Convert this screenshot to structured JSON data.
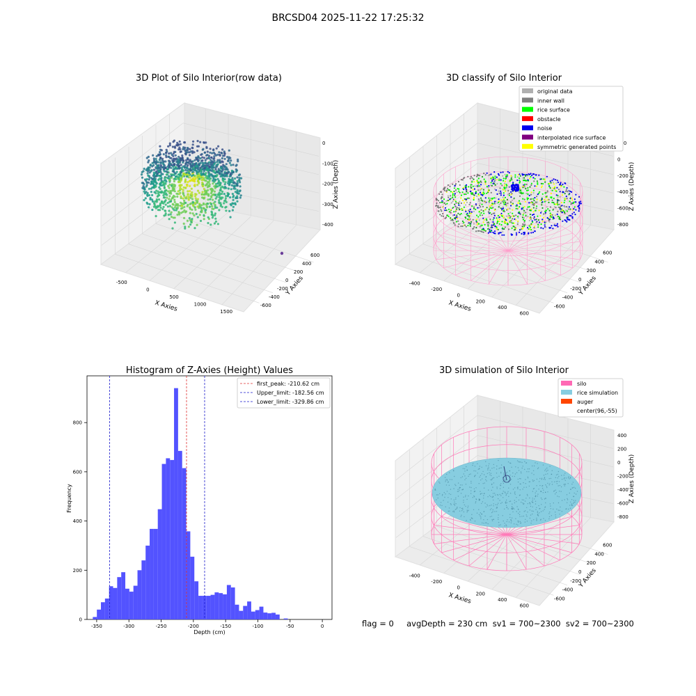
{
  "figure": {
    "suptitle": "BRCSD04 2025-11-22 17:25:32",
    "footer": "flag = 0     avgDepth = 230 cm  sv1 = 700~2300  sv2 = 700~2300"
  },
  "colors": {
    "histogram_bar": "#4d4dff",
    "first_peak_line": "#e03030",
    "limit_line": "#1a1acc",
    "silo_wire": "#ff7ab8",
    "rice_simulation": "#87cde0",
    "rice_surface": "#00ff00",
    "noise": "#0000ee",
    "symmetric_points": "#ffff00"
  },
  "chart_data": [
    {
      "type": "scatter",
      "panel": "3d-raw",
      "title": "3D Plot of Silo Interior(row data)",
      "xlabel": "X Axies",
      "ylabel": "Y Axies",
      "zlabel": "Z Axies (Depth)",
      "x_ticks": [
        "-500",
        "0",
        "500",
        "1000",
        "1500"
      ],
      "y_ticks": [
        "600",
        "400",
        "200",
        "0",
        "-200",
        "-400",
        "-600"
      ],
      "z_ticks": [
        "0",
        "-100",
        "-200",
        "-300",
        "-400"
      ],
      "colormap": "viridis"
    },
    {
      "type": "scatter",
      "panel": "3d-classify",
      "title": "3D classify of Silo Interior",
      "xlabel": "X Axies",
      "ylabel": "Y Axies",
      "zlabel": "Z Axies (Depth)",
      "x_ticks": [
        "-400",
        "-200",
        "0",
        "200",
        "400",
        "600"
      ],
      "y_ticks": [
        "600",
        "400",
        "200",
        "0",
        "-200",
        "-400",
        "-600"
      ],
      "z_ticks": [
        "200",
        "0",
        "-200",
        "-400",
        "-600",
        "-800"
      ],
      "legend_position": "top-right",
      "legend": [
        {
          "label": "original data",
          "color": "#b0b0b0"
        },
        {
          "label": "inner wall",
          "color": "#808080"
        },
        {
          "label": "rice surface",
          "color": "#00ff00"
        },
        {
          "label": "obstacle",
          "color": "#ff0000"
        },
        {
          "label": "noise",
          "color": "#0000ee"
        },
        {
          "label": "interpolated rice surface",
          "color": "#800080"
        },
        {
          "label": "symmetric generated points",
          "color": "#ffff00"
        }
      ]
    },
    {
      "type": "bar",
      "panel": "histogram",
      "title": "Histogram of Z-Axies (Height) Values",
      "xlabel": "Depth (cm)",
      "ylabel": "Frequency",
      "xlim": [
        -365,
        15
      ],
      "ylim": [
        0,
        990
      ],
      "x_ticks": [
        -350,
        -300,
        -250,
        -200,
        -150,
        -100,
        -50,
        0
      ],
      "y_ticks": [
        0,
        200,
        400,
        600,
        800
      ],
      "bin_start": -356,
      "bin_width": 6.3,
      "values": [
        10,
        40,
        70,
        85,
        135,
        128,
        172,
        192,
        125,
        113,
        137,
        200,
        240,
        300,
        368,
        368,
        448,
        632,
        655,
        648,
        940,
        685,
        615,
        358,
        255,
        155,
        96,
        96,
        96,
        100,
        110,
        107,
        102,
        140,
        130,
        60,
        35,
        55,
        73,
        32,
        38,
        52,
        28,
        25,
        27,
        20,
        0,
        4
      ],
      "vlines": [
        {
          "label": "first_peak: -210.62 cm",
          "x": -210.62,
          "color": "#e03030"
        },
        {
          "label": "Upper_limit: -182.56 cm",
          "x": -182.56,
          "color": "#1a1acc"
        },
        {
          "label": "Lower_limit: -329.86 cm",
          "x": -329.86,
          "color": "#1a1acc"
        }
      ],
      "legend_position": "top-right"
    },
    {
      "type": "scatter",
      "panel": "3d-simulation",
      "title": "3D simulation of Silo Interior",
      "xlabel": "X Axies",
      "ylabel": "Y Axies",
      "zlabel": "Z Axies (Depth)",
      "x_ticks": [
        "-400",
        "-200",
        "0",
        "200",
        "400",
        "600"
      ],
      "y_ticks": [
        "600",
        "400",
        "200",
        "0",
        "-200",
        "-400",
        "-600"
      ],
      "z_ticks": [
        "400",
        "200",
        "0",
        "-200",
        "-400",
        "-600",
        "-800"
      ],
      "legend_position": "top-right",
      "legend": [
        {
          "label": "silo",
          "color": "#ff69b4"
        },
        {
          "label": "rice simulation",
          "color": "#87cde0"
        },
        {
          "label": "auger",
          "color": "#ff4500"
        },
        {
          "label": "center(96,-55)",
          "color": ""
        }
      ]
    }
  ]
}
